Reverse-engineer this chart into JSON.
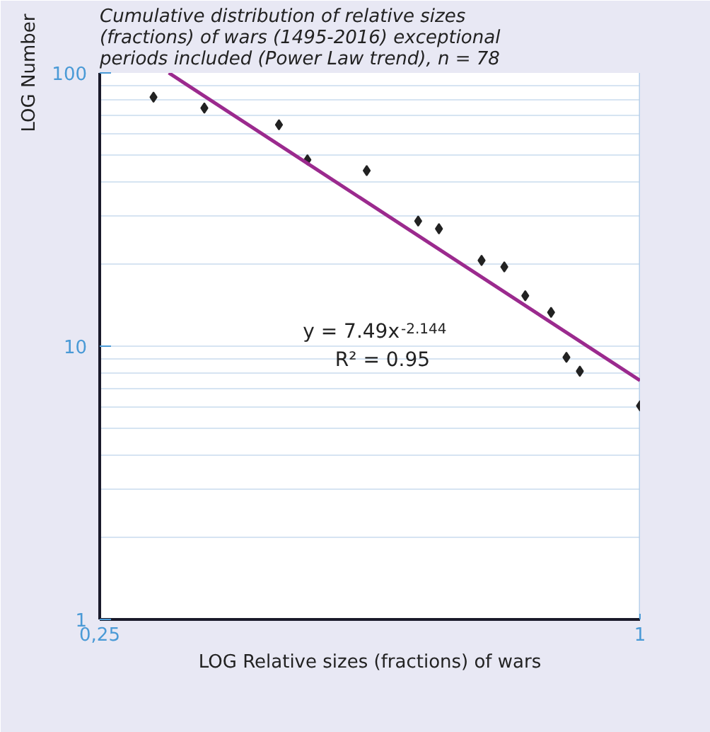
{
  "chart_data": {
    "type": "scatter",
    "title": "Cumulative distribution of relative sizes (fractions) of wars (1495-2016) exceptional periods included (Power Law trend), n = 78",
    "xlabel": "LOG Relative sizes (fractions) of wars",
    "ylabel": "LOG Number",
    "log": "xy",
    "xlim": [
      0.25,
      1
    ],
    "xticks": [
      {
        "value": 0.25,
        "label": "0,25"
      },
      1
    ],
    "ylim": [
      1,
      100
    ],
    "yticks": [
      1,
      10,
      100
    ],
    "grid": "y",
    "marker": "diamond",
    "series": [
      {
        "color": "#222222",
        "x": [
          0.287,
          0.327,
          0.396,
          0.426,
          0.496,
          0.566,
          0.597,
          0.666,
          0.706,
          0.745,
          0.796,
          0.828,
          0.857,
          1.0
        ],
        "values": [
          81.5,
          74.4,
          64.6,
          48.1,
          43.9,
          28.7,
          26.9,
          20.6,
          19.5,
          15.3,
          13.3,
          9.1,
          8.1,
          6.05
        ]
      },
      {
        "type": "line",
        "color": "#9b2a8e",
        "x": [
          0.2985,
          1
        ],
        "values": [
          100,
          7.49
        ],
        "marker": "none",
        "line_style": "solid"
      }
    ],
    "annotations": [
      "y = 7.49x$^{-2.144}$",
      "R² = 0.95"
    ]
  }
}
